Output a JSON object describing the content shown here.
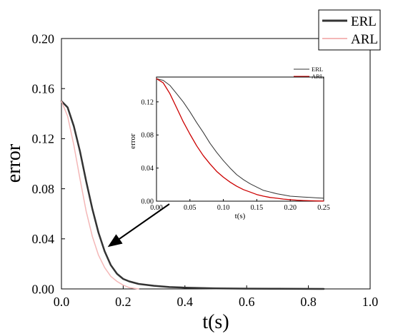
{
  "chart_data": [
    {
      "type": "line",
      "title": "",
      "xlabel": "t(s)",
      "ylabel": "error",
      "xlim": [
        0,
        1.0
      ],
      "ylim": [
        0,
        0.2
      ],
      "x_ticks": [
        "0.0",
        "0.2",
        "0.4",
        "0.6",
        "0.8",
        "1.0"
      ],
      "y_ticks": [
        "0.00",
        "0.04",
        "0.08",
        "0.12",
        "0.16",
        "0.20"
      ],
      "legend_position": "top-right",
      "grid": false,
      "series": [
        {
          "name": "ERL",
          "color": "#333333",
          "x": [
            0,
            0.02,
            0.04,
            0.06,
            0.08,
            0.1,
            0.12,
            0.14,
            0.16,
            0.18,
            0.2,
            0.22,
            0.25,
            0.3,
            0.35,
            0.4,
            0.5,
            0.6,
            0.7,
            0.85
          ],
          "y": [
            0.15,
            0.145,
            0.13,
            0.11,
            0.086,
            0.064,
            0.045,
            0.03,
            0.019,
            0.012,
            0.008,
            0.006,
            0.004,
            0.0025,
            0.0015,
            0.001,
            0.0004,
            0.0002,
            0.0001,
            0
          ]
        },
        {
          "name": "ARL",
          "color": "#f4b7b7",
          "x": [
            0,
            0.02,
            0.04,
            0.06,
            0.08,
            0.1,
            0.12,
            0.14,
            0.16,
            0.18,
            0.2,
            0.22,
            0.25
          ],
          "y": [
            0.15,
            0.138,
            0.115,
            0.088,
            0.062,
            0.042,
            0.027,
            0.017,
            0.01,
            0.006,
            0.003,
            0.001,
            0
          ]
        }
      ]
    },
    {
      "type": "line",
      "title": "",
      "xlabel": "t(s)",
      "ylabel": "error",
      "xlim": [
        0,
        0.25
      ],
      "ylim": [
        0,
        0.15
      ],
      "x_ticks": [
        "0.00",
        "0.05",
        "0.10",
        "0.15",
        "0.20",
        "0.25"
      ],
      "y_ticks": [
        "0.00",
        "0.04",
        "0.08",
        "0.12"
      ],
      "legend_position": "top-right",
      "grid": false,
      "series": [
        {
          "name": "ERL",
          "color": "#333333",
          "x": [
            0,
            0.01,
            0.02,
            0.03,
            0.04,
            0.05,
            0.06,
            0.07,
            0.08,
            0.09,
            0.1,
            0.11,
            0.12,
            0.13,
            0.14,
            0.15,
            0.16,
            0.17,
            0.18,
            0.19,
            0.2,
            0.21,
            0.22,
            0.23,
            0.24,
            0.25
          ],
          "y": [
            0.148,
            0.146,
            0.14,
            0.13,
            0.12,
            0.108,
            0.095,
            0.083,
            0.07,
            0.059,
            0.049,
            0.04,
            0.032,
            0.026,
            0.021,
            0.017,
            0.013,
            0.011,
            0.009,
            0.0075,
            0.006,
            0.0055,
            0.005,
            0.0045,
            0.004,
            0.0035
          ]
        },
        {
          "name": "ARL",
          "color": "#cc0000",
          "x": [
            0,
            0.01,
            0.02,
            0.03,
            0.04,
            0.05,
            0.06,
            0.07,
            0.08,
            0.09,
            0.1,
            0.11,
            0.12,
            0.13,
            0.14,
            0.15,
            0.16,
            0.17,
            0.18,
            0.19,
            0.2,
            0.21,
            0.22,
            0.23,
            0.24,
            0.25
          ],
          "y": [
            0.148,
            0.143,
            0.13,
            0.113,
            0.096,
            0.081,
            0.067,
            0.055,
            0.045,
            0.036,
            0.029,
            0.023,
            0.018,
            0.014,
            0.011,
            0.008,
            0.006,
            0.0045,
            0.0035,
            0.0025,
            0.0018,
            0.0012,
            0.0008,
            0.0005,
            0.0003,
            0.0002
          ]
        }
      ]
    }
  ]
}
